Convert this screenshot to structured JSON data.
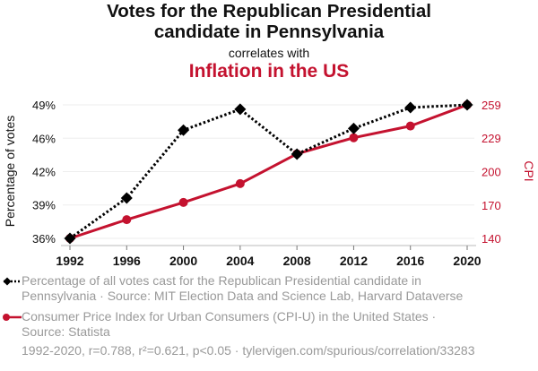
{
  "header": {
    "title_line1": "Votes for the Republican Presidential",
    "title_line2": "candidate in Pennsylvania",
    "subtitle": "correlates with",
    "title2": "Inflation in the US"
  },
  "colors": {
    "series1": "#000000",
    "series2": "#c4122f",
    "grid": "#eeeeee",
    "legend_text": "#999999"
  },
  "chart_data": {
    "type": "line",
    "title": "Votes for the Republican Presidential candidate in Pennsylvania correlates with Inflation in the US",
    "x": [
      1992,
      1996,
      2000,
      2004,
      2008,
      2012,
      2016,
      2020
    ],
    "xlabel": "",
    "x_ticks": [
      "1992",
      "1996",
      "2000",
      "2004",
      "2008",
      "2012",
      "2016",
      "2020"
    ],
    "xlim": [
      1992,
      2020
    ],
    "grid": true,
    "y_left": {
      "label": "Percentage of votes",
      "ticks": [
        "36%",
        "39%",
        "42%",
        "46%",
        "49%"
      ],
      "tick_values": [
        36.13,
        39.31,
        42.48,
        45.66,
        48.84
      ],
      "ylim": [
        36.13,
        48.84
      ]
    },
    "y_right": {
      "label": "CPI",
      "ticks": [
        "140",
        "170",
        "200",
        "229",
        "259"
      ],
      "tick_values": [
        140.3,
        169.9,
        199.6,
        229.2,
        258.8
      ],
      "ylim": [
        140.3,
        258.8
      ]
    },
    "series": [
      {
        "name": "Percentage of all votes cast for the Republican Presidential candidate in Pennsylvania",
        "axis": "left",
        "style": "dotted",
        "marker": "diamond",
        "color": "#000000",
        "values": [
          36.13,
          39.97,
          46.43,
          48.42,
          44.15,
          46.59,
          48.58,
          48.84
        ]
      },
      {
        "name": "Consumer Price Index for Urban Consumers (CPI-U) in the United States",
        "axis": "right",
        "style": "solid",
        "marker": "circle",
        "color": "#c4122f",
        "values": [
          140.3,
          156.9,
          172.2,
          188.9,
          215.3,
          229.6,
          240.0,
          258.8
        ]
      }
    ],
    "legend_position": "bottom"
  },
  "legend": {
    "series1_line1": "Percentage of all votes cast for the Republican Presidential candidate in",
    "series1_line2": "Pennsylvania · Source: MIT Election Data and Science Lab, Harvard Dataverse",
    "series2_line1": "Consumer Price Index for Urban Consumers (CPI-U) in the United States ·",
    "series2_line2": "Source: Statista"
  },
  "footer": "1992-2020, r=0.788, r²=0.621, p<0.05 · tylervigen.com/spurious/correlation/33283"
}
